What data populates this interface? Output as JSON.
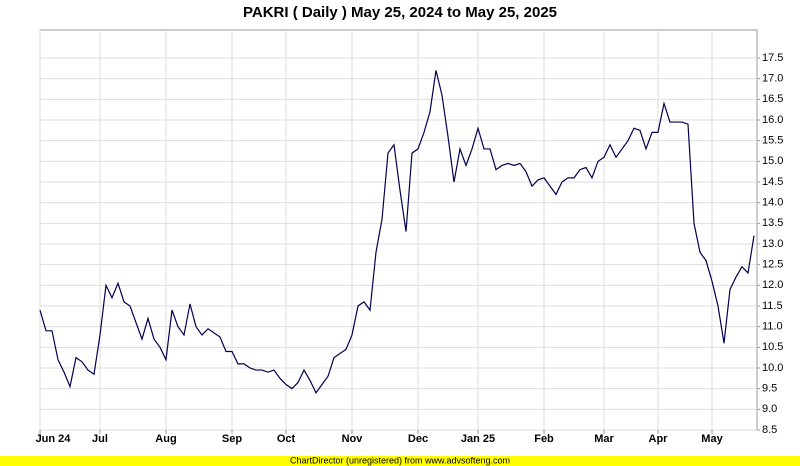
{
  "chart_data": {
    "type": "line",
    "title": "PAKRI ( Daily ) May 25, 2024 to May 25, 2025",
    "footer": "ChartDirector (unregistered) from www.advsofteng.com",
    "color": "#000050",
    "grid": true,
    "categories": [
      "Jun 24",
      null,
      null,
      null,
      null,
      null,
      null,
      null,
      null,
      null,
      "Jul",
      null,
      null,
      null,
      null,
      null,
      null,
      null,
      null,
      null,
      null,
      "Aug",
      null,
      null,
      null,
      null,
      null,
      null,
      null,
      null,
      null,
      null,
      "Sep",
      null,
      null,
      null,
      null,
      null,
      null,
      null,
      null,
      "Oct",
      null,
      null,
      null,
      null,
      null,
      null,
      null,
      null,
      null,
      null,
      "Nov",
      null,
      null,
      null,
      null,
      null,
      null,
      null,
      null,
      null,
      null,
      "Dec",
      null,
      null,
      null,
      null,
      null,
      null,
      null,
      null,
      null,
      "Jan 25",
      null,
      null,
      null,
      null,
      null,
      null,
      null,
      null,
      null,
      null,
      "Feb",
      null,
      null,
      null,
      null,
      null,
      null,
      null,
      null,
      null,
      "Mar",
      null,
      null,
      null,
      null,
      null,
      null,
      null,
      null,
      "Apr",
      null,
      null,
      null,
      null,
      null,
      null,
      null,
      null,
      "May",
      null,
      null,
      null,
      null,
      null,
      null,
      null
    ],
    "values": [
      11.4,
      10.9,
      10.9,
      10.2,
      9.9,
      9.55,
      10.25,
      10.15,
      9.95,
      9.85,
      10.8,
      12.0,
      11.7,
      12.05,
      11.6,
      11.5,
      11.1,
      10.7,
      11.2,
      10.7,
      10.5,
      10.2,
      11.4,
      11.0,
      10.8,
      11.55,
      11.0,
      10.8,
      10.95,
      10.85,
      10.75,
      10.4,
      10.4,
      10.1,
      10.1,
      10.0,
      9.95,
      9.95,
      9.9,
      9.95,
      9.75,
      9.6,
      9.5,
      9.65,
      9.95,
      9.7,
      9.4,
      9.6,
      9.8,
      10.25,
      10.35,
      10.45,
      10.8,
      11.5,
      11.6,
      11.4,
      12.8,
      13.6,
      15.2,
      15.4,
      14.3,
      13.3,
      15.2,
      15.3,
      15.7,
      16.2,
      17.2,
      16.6,
      15.6,
      14.5,
      15.3,
      14.9,
      15.3,
      15.8,
      15.3,
      15.3,
      14.8,
      14.9,
      14.95,
      14.9,
      14.95,
      14.75,
      14.4,
      14.55,
      14.6,
      14.4,
      14.2,
      14.5,
      14.6,
      14.6,
      14.8,
      14.85,
      14.6,
      15.0,
      15.1,
      15.4,
      15.1,
      15.3,
      15.5,
      15.8,
      15.75,
      15.3,
      15.7,
      15.7,
      16.4,
      15.95,
      15.95,
      15.95,
      15.9,
      13.5,
      12.8,
      12.6,
      12.1,
      11.5,
      10.6,
      11.9,
      12.2,
      12.45,
      12.3,
      13.2
    ],
    "ylim": [
      8.5,
      17.5
    ],
    "yticks": [
      8.5,
      {
        "value": 9,
        "label": "9.0"
      },
      9.5,
      {
        "value": 10,
        "label": "10.0"
      },
      10.5,
      {
        "value": 11,
        "label": "11.0"
      },
      11.5,
      {
        "value": 12,
        "label": "12.0"
      },
      12.5,
      {
        "value": 13,
        "label": "13.0"
      },
      13.5,
      {
        "value": 14,
        "label": "14.0"
      },
      14.5,
      {
        "value": 15,
        "label": "15.0"
      },
      15.5,
      {
        "value": 16,
        "label": "16.0"
      },
      16.5,
      {
        "value": 17,
        "label": "17.0"
      },
      17.5
    ]
  }
}
